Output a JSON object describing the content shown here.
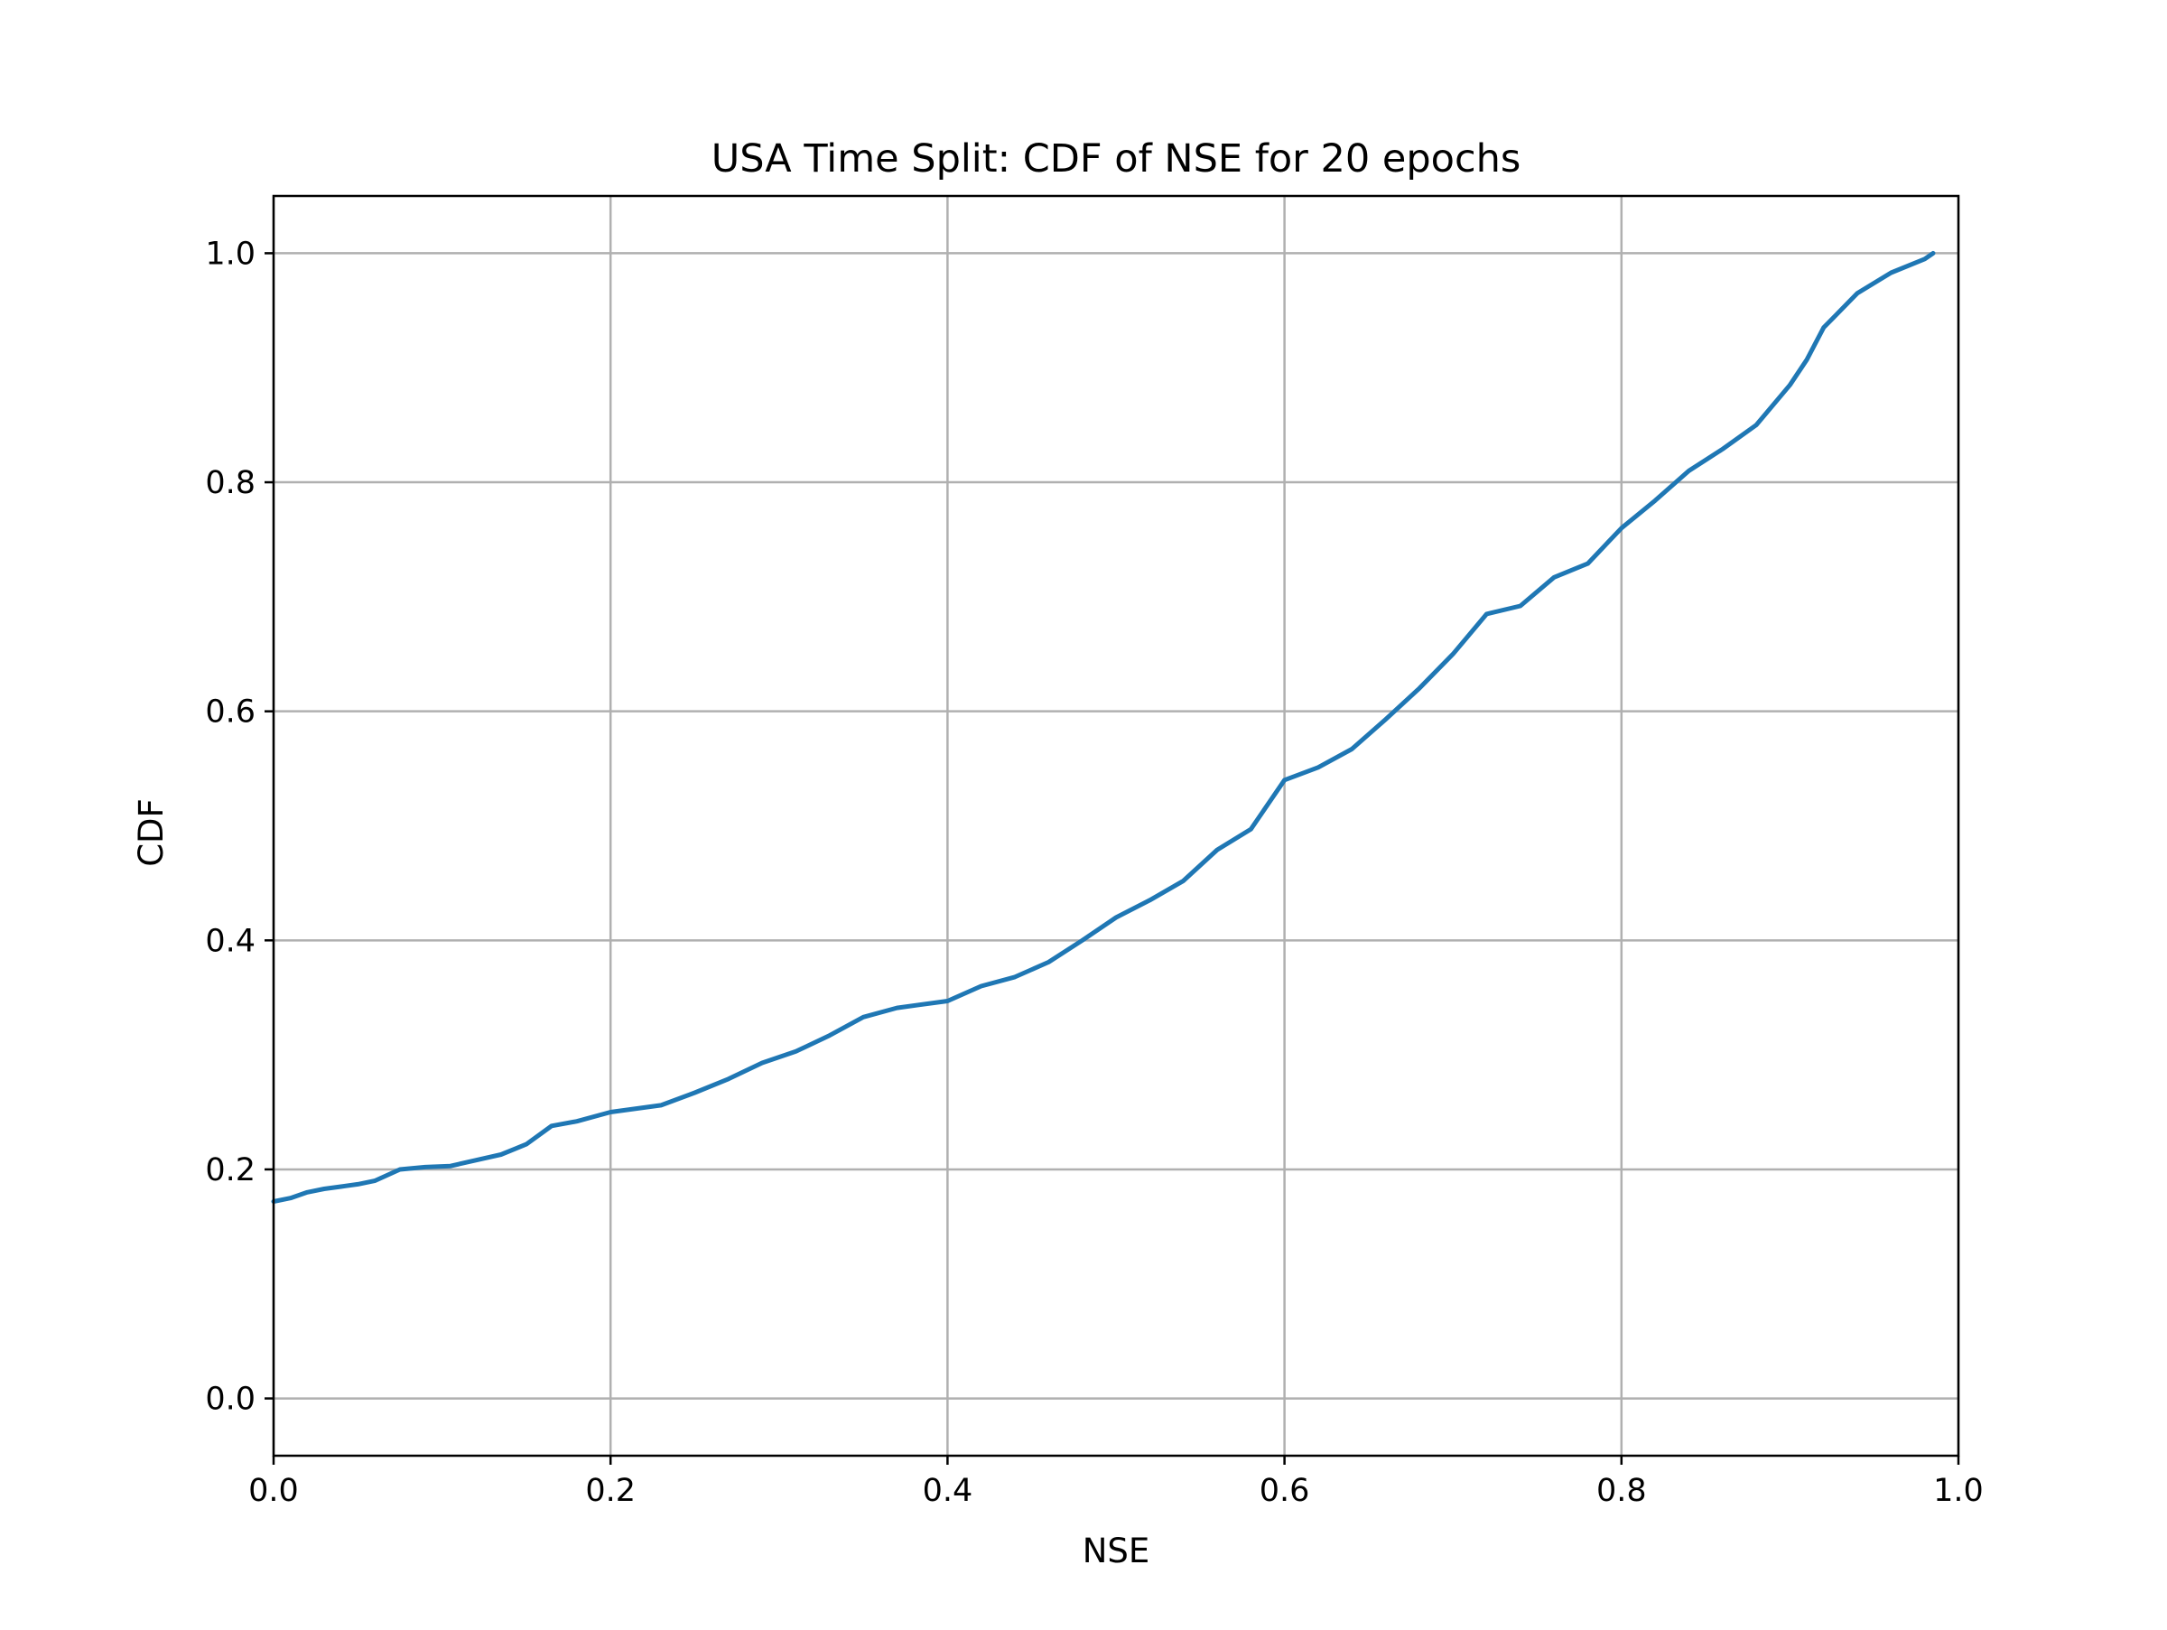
{
  "chart_data": {
    "type": "line",
    "title": "USA Time Split: CDF of NSE for 20 epochs",
    "xlabel": "NSE",
    "ylabel": "CDF",
    "xlim": [
      0.0,
      1.0
    ],
    "ylim": [
      -0.05,
      1.05
    ],
    "xticks": [
      0.0,
      0.2,
      0.4,
      0.6,
      0.8,
      1.0
    ],
    "xtick_labels": [
      "0.0",
      "0.2",
      "0.4",
      "0.6",
      "0.8",
      "1.0"
    ],
    "yticks": [
      0.0,
      0.2,
      0.4,
      0.6,
      0.8,
      1.0
    ],
    "ytick_labels": [
      "0.0",
      "0.2",
      "0.4",
      "0.6",
      "0.8",
      "1.0"
    ],
    "grid": true,
    "line_color": "#1f77b4",
    "grid_color": "#b0b0b0",
    "series": [
      {
        "name": "CDF of NSE",
        "x": [
          0.0,
          0.01,
          0.02,
          0.03,
          0.04,
          0.05,
          0.06,
          0.075,
          0.09,
          0.105,
          0.12,
          0.135,
          0.15,
          0.165,
          0.18,
          0.2,
          0.23,
          0.25,
          0.27,
          0.29,
          0.31,
          0.33,
          0.35,
          0.37,
          0.4,
          0.42,
          0.44,
          0.46,
          0.48,
          0.5,
          0.52,
          0.54,
          0.56,
          0.58,
          0.6,
          0.62,
          0.64,
          0.66,
          0.68,
          0.7,
          0.72,
          0.74,
          0.76,
          0.78,
          0.8,
          0.82,
          0.84,
          0.86,
          0.88,
          0.9,
          0.91,
          0.92,
          0.93,
          0.94,
          0.96,
          0.98,
          0.985
        ],
        "y": [
          0.172,
          0.175,
          0.18,
          0.183,
          0.185,
          0.187,
          0.19,
          0.2,
          0.202,
          0.203,
          0.208,
          0.213,
          0.222,
          0.238,
          0.242,
          0.25,
          0.256,
          0.267,
          0.279,
          0.293,
          0.303,
          0.317,
          0.333,
          0.341,
          0.347,
          0.36,
          0.368,
          0.381,
          0.4,
          0.42,
          0.435,
          0.452,
          0.479,
          0.497,
          0.54,
          0.551,
          0.567,
          0.593,
          0.62,
          0.65,
          0.685,
          0.692,
          0.717,
          0.729,
          0.76,
          0.784,
          0.81,
          0.829,
          0.85,
          0.885,
          0.907,
          0.935,
          0.95,
          0.965,
          0.983,
          0.995,
          1.0
        ]
      }
    ]
  }
}
